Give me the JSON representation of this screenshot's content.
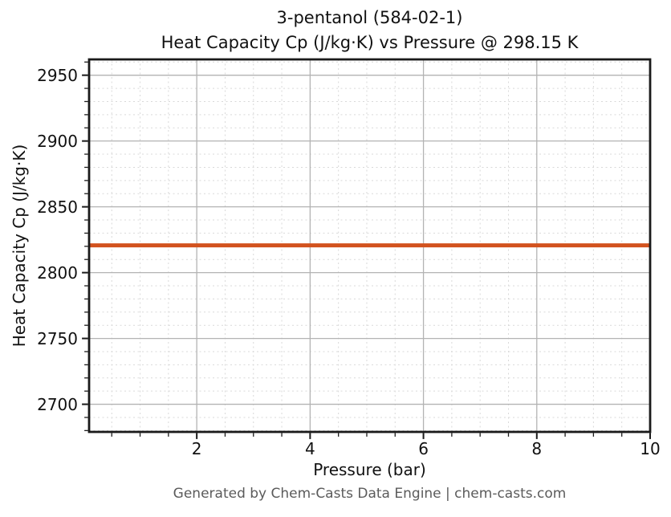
{
  "title": {
    "line1": "3-pentanol (584-02-1)",
    "line2": "Heat Capacity Cp (J/kg·K) vs Pressure @ 298.15 K"
  },
  "footer": {
    "text": "Generated by Chem-Casts Data Engine | chem-casts.com"
  },
  "chart_data": {
    "type": "line",
    "title": "3-pentanol (584-02-1)",
    "subtitle": "Heat Capacity Cp (J/kg·K) vs Pressure @ 298.15 K",
    "xlabel": "Pressure (bar)",
    "ylabel": "Heat Capacity Cp (J/kg·K)",
    "xlim": [
      0.1,
      10
    ],
    "ylim": [
      2679,
      2962
    ],
    "xticks": [
      2,
      4,
      6,
      8,
      10
    ],
    "yticks": [
      2700,
      2750,
      2800,
      2850,
      2900,
      2950
    ],
    "x_minor_step": 0.5,
    "y_minor_step": 10,
    "grid": {
      "major": true,
      "minor": true
    },
    "legend_position": "none",
    "series": [
      {
        "name": "Heat Capacity Cp (J/kg·K)",
        "color": "#d2521e",
        "line_width": 5,
        "x": [
          0.1,
          10
        ],
        "y": [
          2820.7,
          2820.7
        ]
      }
    ]
  },
  "style": {
    "major_grid_color": "#b3b3b3",
    "minor_grid_color": "#d9d9d9",
    "spine_color": "#1a1a1a",
    "tick_color": "#1a1a1a",
    "text_color": "#111111",
    "footer_color": "#5b5b5b",
    "background": "#ffffff"
  }
}
